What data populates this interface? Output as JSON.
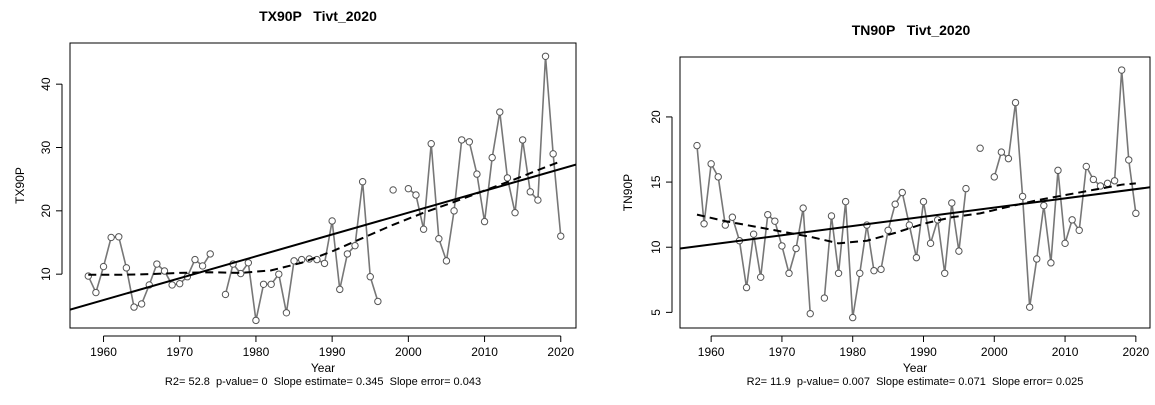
{
  "chart_data": [
    {
      "type": "line",
      "title": "TX90P   Tivt_2020",
      "xlabel": "Year",
      "ylabel": "TX90P",
      "stats": "R2= 52.8  p-value= 0  Slope estimate= 0.345  Slope error= 0.043",
      "xlim": [
        1955.6,
        2022
      ],
      "ylim": [
        1.5,
        46.5
      ],
      "xticks": [
        1960,
        1970,
        1980,
        1990,
        2000,
        2010,
        2020
      ],
      "yticks": [
        10,
        20,
        30,
        40
      ],
      "grid": false,
      "series": [
        {
          "style": "points-connected",
          "color": "#777777",
          "x": [
            1958,
            1959,
            1960,
            1961,
            1962,
            1963,
            1964,
            1965,
            1966,
            1967,
            1968,
            1969,
            1970,
            1971,
            1972,
            1973,
            1974,
            1975,
            1976,
            1977,
            1978,
            1979,
            1980,
            1981,
            1982,
            1983,
            1984,
            1985,
            1986,
            1987,
            1988,
            1989,
            1990,
            1991,
            1992,
            1993,
            1994,
            1995,
            1996,
            1997,
            1998,
            1999,
            2000,
            2001,
            2002,
            2003,
            2004,
            2005,
            2006,
            2007,
            2008,
            2009,
            2010,
            2011,
            2012,
            2013,
            2014,
            2015,
            2016,
            2017,
            2018,
            2019,
            2020
          ],
          "y": [
            9.7,
            7.1,
            11.2,
            15.8,
            15.9,
            11.0,
            4.8,
            5.3,
            8.3,
            11.6,
            10.5,
            8.3,
            8.5,
            9.6,
            12.3,
            11.3,
            13.2,
            null,
            6.8,
            11.6,
            10.1,
            11.8,
            2.7,
            8.4,
            8.4,
            10.0,
            3.9,
            12.1,
            12.3,
            12.4,
            12.3,
            11.7,
            18.4,
            7.6,
            13.2,
            14.5,
            24.6,
            9.6,
            5.7,
            null,
            23.3,
            null,
            23.5,
            22.5,
            17.1,
            30.6,
            15.6,
            12.1,
            20.0,
            31.2,
            30.9,
            25.8,
            18.3,
            28.4,
            35.6,
            25.2,
            19.7,
            31.2,
            23.0,
            21.7,
            44.4,
            29.0,
            16.0
          ]
        },
        {
          "style": "solid-trend",
          "x": [
            1955.6,
            2022
          ],
          "y": [
            4.4,
            27.3
          ]
        },
        {
          "style": "dashed-smooth",
          "x": [
            1958,
            1962,
            1966,
            1970,
            1974,
            1978,
            1982,
            1986,
            1990,
            1994,
            1998,
            2002,
            2006,
            2010,
            2014,
            2018,
            2020
          ],
          "y": [
            9.9,
            9.9,
            10.0,
            10.2,
            10.3,
            10.2,
            10.6,
            11.8,
            13.6,
            15.7,
            17.8,
            19.7,
            21.4,
            23.2,
            25.0,
            26.9,
            27.8
          ]
        }
      ]
    },
    {
      "type": "line",
      "title": "TN90P   Tivt_2020",
      "xlabel": "Year",
      "ylabel": "TN90P",
      "stats": "R2= 11.9  p-value= 0.007  Slope estimate= 0.071  Slope error= 0.025",
      "xlim": [
        1955.6,
        2022
      ],
      "ylim": [
        3.8,
        24.6
      ],
      "xticks": [
        1960,
        1970,
        1980,
        1990,
        2000,
        2010,
        2020
      ],
      "yticks": [
        5,
        10,
        15,
        20
      ],
      "grid": false,
      "series": [
        {
          "style": "points-connected",
          "color": "#777777",
          "x": [
            1958,
            1959,
            1960,
            1961,
            1962,
            1963,
            1964,
            1965,
            1966,
            1967,
            1968,
            1969,
            1970,
            1971,
            1972,
            1973,
            1974,
            1975,
            1976,
            1977,
            1978,
            1979,
            1980,
            1981,
            1982,
            1983,
            1984,
            1985,
            1986,
            1987,
            1988,
            1989,
            1990,
            1991,
            1992,
            1993,
            1994,
            1995,
            1996,
            1997,
            1998,
            1999,
            2000,
            2001,
            2002,
            2003,
            2004,
            2005,
            2006,
            2007,
            2008,
            2009,
            2010,
            2011,
            2012,
            2013,
            2014,
            2015,
            2016,
            2017,
            2018,
            2019,
            2020
          ],
          "y": [
            17.8,
            11.8,
            16.4,
            15.4,
            11.7,
            12.3,
            10.5,
            6.9,
            11.0,
            7.7,
            12.5,
            12.0,
            10.1,
            8.0,
            9.9,
            13.0,
            4.9,
            null,
            6.1,
            12.4,
            8.0,
            13.5,
            4.6,
            8.0,
            11.7,
            8.2,
            8.3,
            11.3,
            13.3,
            14.2,
            11.7,
            9.2,
            13.5,
            10.3,
            12.1,
            8.0,
            13.4,
            9.7,
            14.5,
            null,
            17.6,
            null,
            15.4,
            17.3,
            16.8,
            21.1,
            13.9,
            5.4,
            9.1,
            13.2,
            8.8,
            15.9,
            10.3,
            12.1,
            11.3,
            16.2,
            15.2,
            14.7,
            14.9,
            15.1,
            23.6,
            16.7,
            12.6
          ]
        },
        {
          "style": "solid-trend",
          "x": [
            1955.6,
            2022
          ],
          "y": [
            9.9,
            14.6
          ]
        },
        {
          "style": "dashed-smooth",
          "x": [
            1958,
            1962,
            1966,
            1970,
            1974,
            1978,
            1982,
            1986,
            1990,
            1994,
            1998,
            2002,
            2006,
            2010,
            2014,
            2018,
            2020
          ],
          "y": [
            12.5,
            12.0,
            11.6,
            11.2,
            10.8,
            10.3,
            10.5,
            11.1,
            11.8,
            12.3,
            12.6,
            13.1,
            13.6,
            14.0,
            14.4,
            14.8,
            14.9
          ]
        }
      ]
    }
  ]
}
